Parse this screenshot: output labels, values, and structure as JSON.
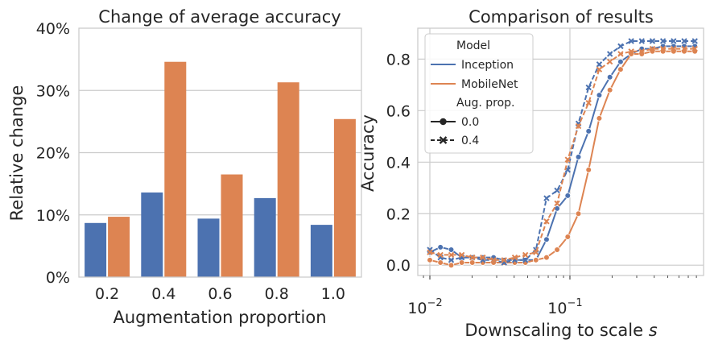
{
  "colors": {
    "blue": "#4c72b0",
    "orange": "#dd8452"
  },
  "chart_data": [
    {
      "type": "bar",
      "title": "Change of average accuracy",
      "xlabel": "Augmentation proportion",
      "ylabel": "Relative change",
      "categories": [
        "0.2",
        "0.4",
        "0.6",
        "0.8",
        "1.0"
      ],
      "series": [
        {
          "values": [
            0.087,
            0.136,
            0.094,
            0.127,
            0.084
          ]
        },
        {
          "values": [
            0.097,
            0.346,
            0.165,
            0.313,
            0.254
          ]
        }
      ],
      "ylim": [
        0,
        0.4
      ],
      "yticks": [
        0,
        0.1,
        0.2,
        0.3,
        0.4
      ],
      "ytick_labels": [
        "0%",
        "10%",
        "20%",
        "30%",
        "40%"
      ],
      "grid": "y"
    },
    {
      "type": "line",
      "title": "Comparison of results",
      "xlabel": "Downscaling to scale s",
      "xlabel_text": "Downscaling to scale ",
      "xlabel_var": "s",
      "ylabel": "Accuracy",
      "xscale": "log",
      "xlim": [
        0.0082,
        0.9
      ],
      "ylim": [
        -0.04,
        0.92
      ],
      "xticks": [
        0.01,
        0.1
      ],
      "xtick_base": "10",
      "xtick_exps": [
        "−2",
        "−1"
      ],
      "yticks": [
        0.0,
        0.2,
        0.4,
        0.6,
        0.8
      ],
      "ytick_labels": [
        "0.0",
        "0.2",
        "0.4",
        "0.6",
        "0.8"
      ],
      "grid": "both",
      "x": [
        0.01,
        0.0119,
        0.0142,
        0.0169,
        0.0201,
        0.0239,
        0.0285,
        0.0339,
        0.0404,
        0.0481,
        0.0572,
        0.0681,
        0.081,
        0.0965,
        0.115,
        0.136,
        0.162,
        0.193,
        0.23,
        0.274,
        0.326,
        0.388,
        0.462,
        0.55,
        0.655,
        0.78
      ],
      "series": [
        {
          "model": "Inception",
          "aug": "0.0",
          "values": [
            0.05,
            0.07,
            0.06,
            0.03,
            0.03,
            0.03,
            0.03,
            0.02,
            0.02,
            0.02,
            0.02,
            0.1,
            0.22,
            0.27,
            0.42,
            0.52,
            0.66,
            0.73,
            0.79,
            0.82,
            0.84,
            0.84,
            0.85,
            0.85,
            0.85,
            0.85
          ]
        },
        {
          "model": "MobileNet",
          "aug": "0.0",
          "values": [
            0.02,
            0.01,
            0.0,
            0.01,
            0.01,
            0.01,
            0.01,
            0.01,
            0.01,
            0.01,
            0.02,
            0.03,
            0.06,
            0.11,
            0.2,
            0.37,
            0.57,
            0.68,
            0.76,
            0.82,
            0.82,
            0.83,
            0.83,
            0.83,
            0.83,
            0.83
          ]
        },
        {
          "model": "Inception",
          "aug": "0.4",
          "values": [
            0.06,
            0.03,
            0.02,
            0.03,
            0.03,
            0.02,
            0.02,
            0.01,
            0.02,
            0.02,
            0.06,
            0.26,
            0.29,
            0.37,
            0.55,
            0.69,
            0.78,
            0.82,
            0.85,
            0.87,
            0.87,
            0.87,
            0.87,
            0.87,
            0.87,
            0.87
          ]
        },
        {
          "model": "MobileNet",
          "aug": "0.4",
          "values": [
            0.05,
            0.04,
            0.04,
            0.04,
            0.03,
            0.03,
            0.02,
            0.02,
            0.03,
            0.04,
            0.05,
            0.17,
            0.24,
            0.41,
            0.54,
            0.63,
            0.76,
            0.79,
            0.82,
            0.83,
            0.83,
            0.84,
            0.84,
            0.84,
            0.84,
            0.84
          ]
        }
      ],
      "legend": {
        "position": "upper left",
        "hue_title": "Model",
        "hue": [
          "Inception",
          "MobileNet"
        ],
        "style_title": "Aug. prop.",
        "style": [
          "0.0",
          "0.4"
        ]
      }
    }
  ]
}
